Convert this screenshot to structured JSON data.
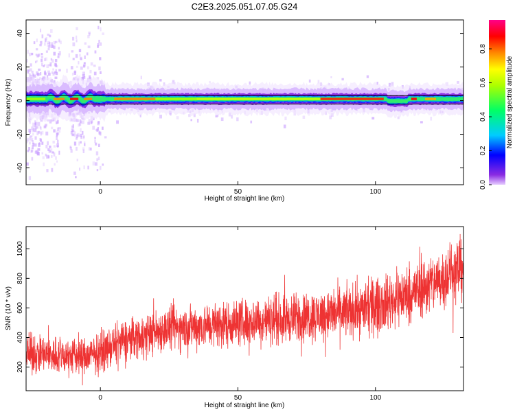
{
  "title": "C2E3.2025.051.07.05.G24",
  "chart_data": [
    {
      "type": "heatmap",
      "xlabel": "Height of straight line (km)",
      "ylabel": "Frequency (Hz)",
      "xlim": [
        -27,
        132
      ],
      "ylim": [
        -50,
        48
      ],
      "xticks": [
        0,
        50,
        100
      ],
      "yticks": [
        40,
        20,
        0,
        -20,
        -40
      ],
      "grid": false,
      "ridge_line_hz": 1,
      "ridge_band_hz": [
        -2,
        3
      ],
      "colorbar": {
        "label": "Normalized spectral amplitude",
        "range": [
          0,
          0.97
        ],
        "ticks": [
          0.0,
          0.2,
          0.4,
          0.6,
          0.8
        ],
        "colors": [
          "#e6ccff",
          "#5500ff",
          "#0000ff",
          "#00ccff",
          "#00ff66",
          "#aaff00",
          "#ffff00",
          "#ff8800",
          "#ff0000",
          "#ff0088"
        ]
      }
    },
    {
      "type": "line",
      "xlabel": "Height of straight line (km)",
      "ylabel": "SNR (10 * v/v)",
      "xlim": [
        -27,
        132
      ],
      "ylim": [
        40,
        1150
      ],
      "xticks": [
        0,
        50,
        100
      ],
      "yticks": [
        1000,
        800,
        600,
        400,
        200
      ],
      "grid": false,
      "color": "#ee3333",
      "trend_x": [
        -27,
        -15,
        -5,
        0,
        10,
        25,
        50,
        75,
        90,
        100,
        110,
        120,
        132
      ],
      "trend_y": [
        290,
        280,
        270,
        300,
        390,
        460,
        500,
        540,
        575,
        610,
        680,
        760,
        880
      ],
      "noise_amplitude": [
        140,
        140,
        140,
        140,
        150,
        160,
        170,
        180,
        190,
        200,
        210,
        220,
        230
      ]
    }
  ]
}
